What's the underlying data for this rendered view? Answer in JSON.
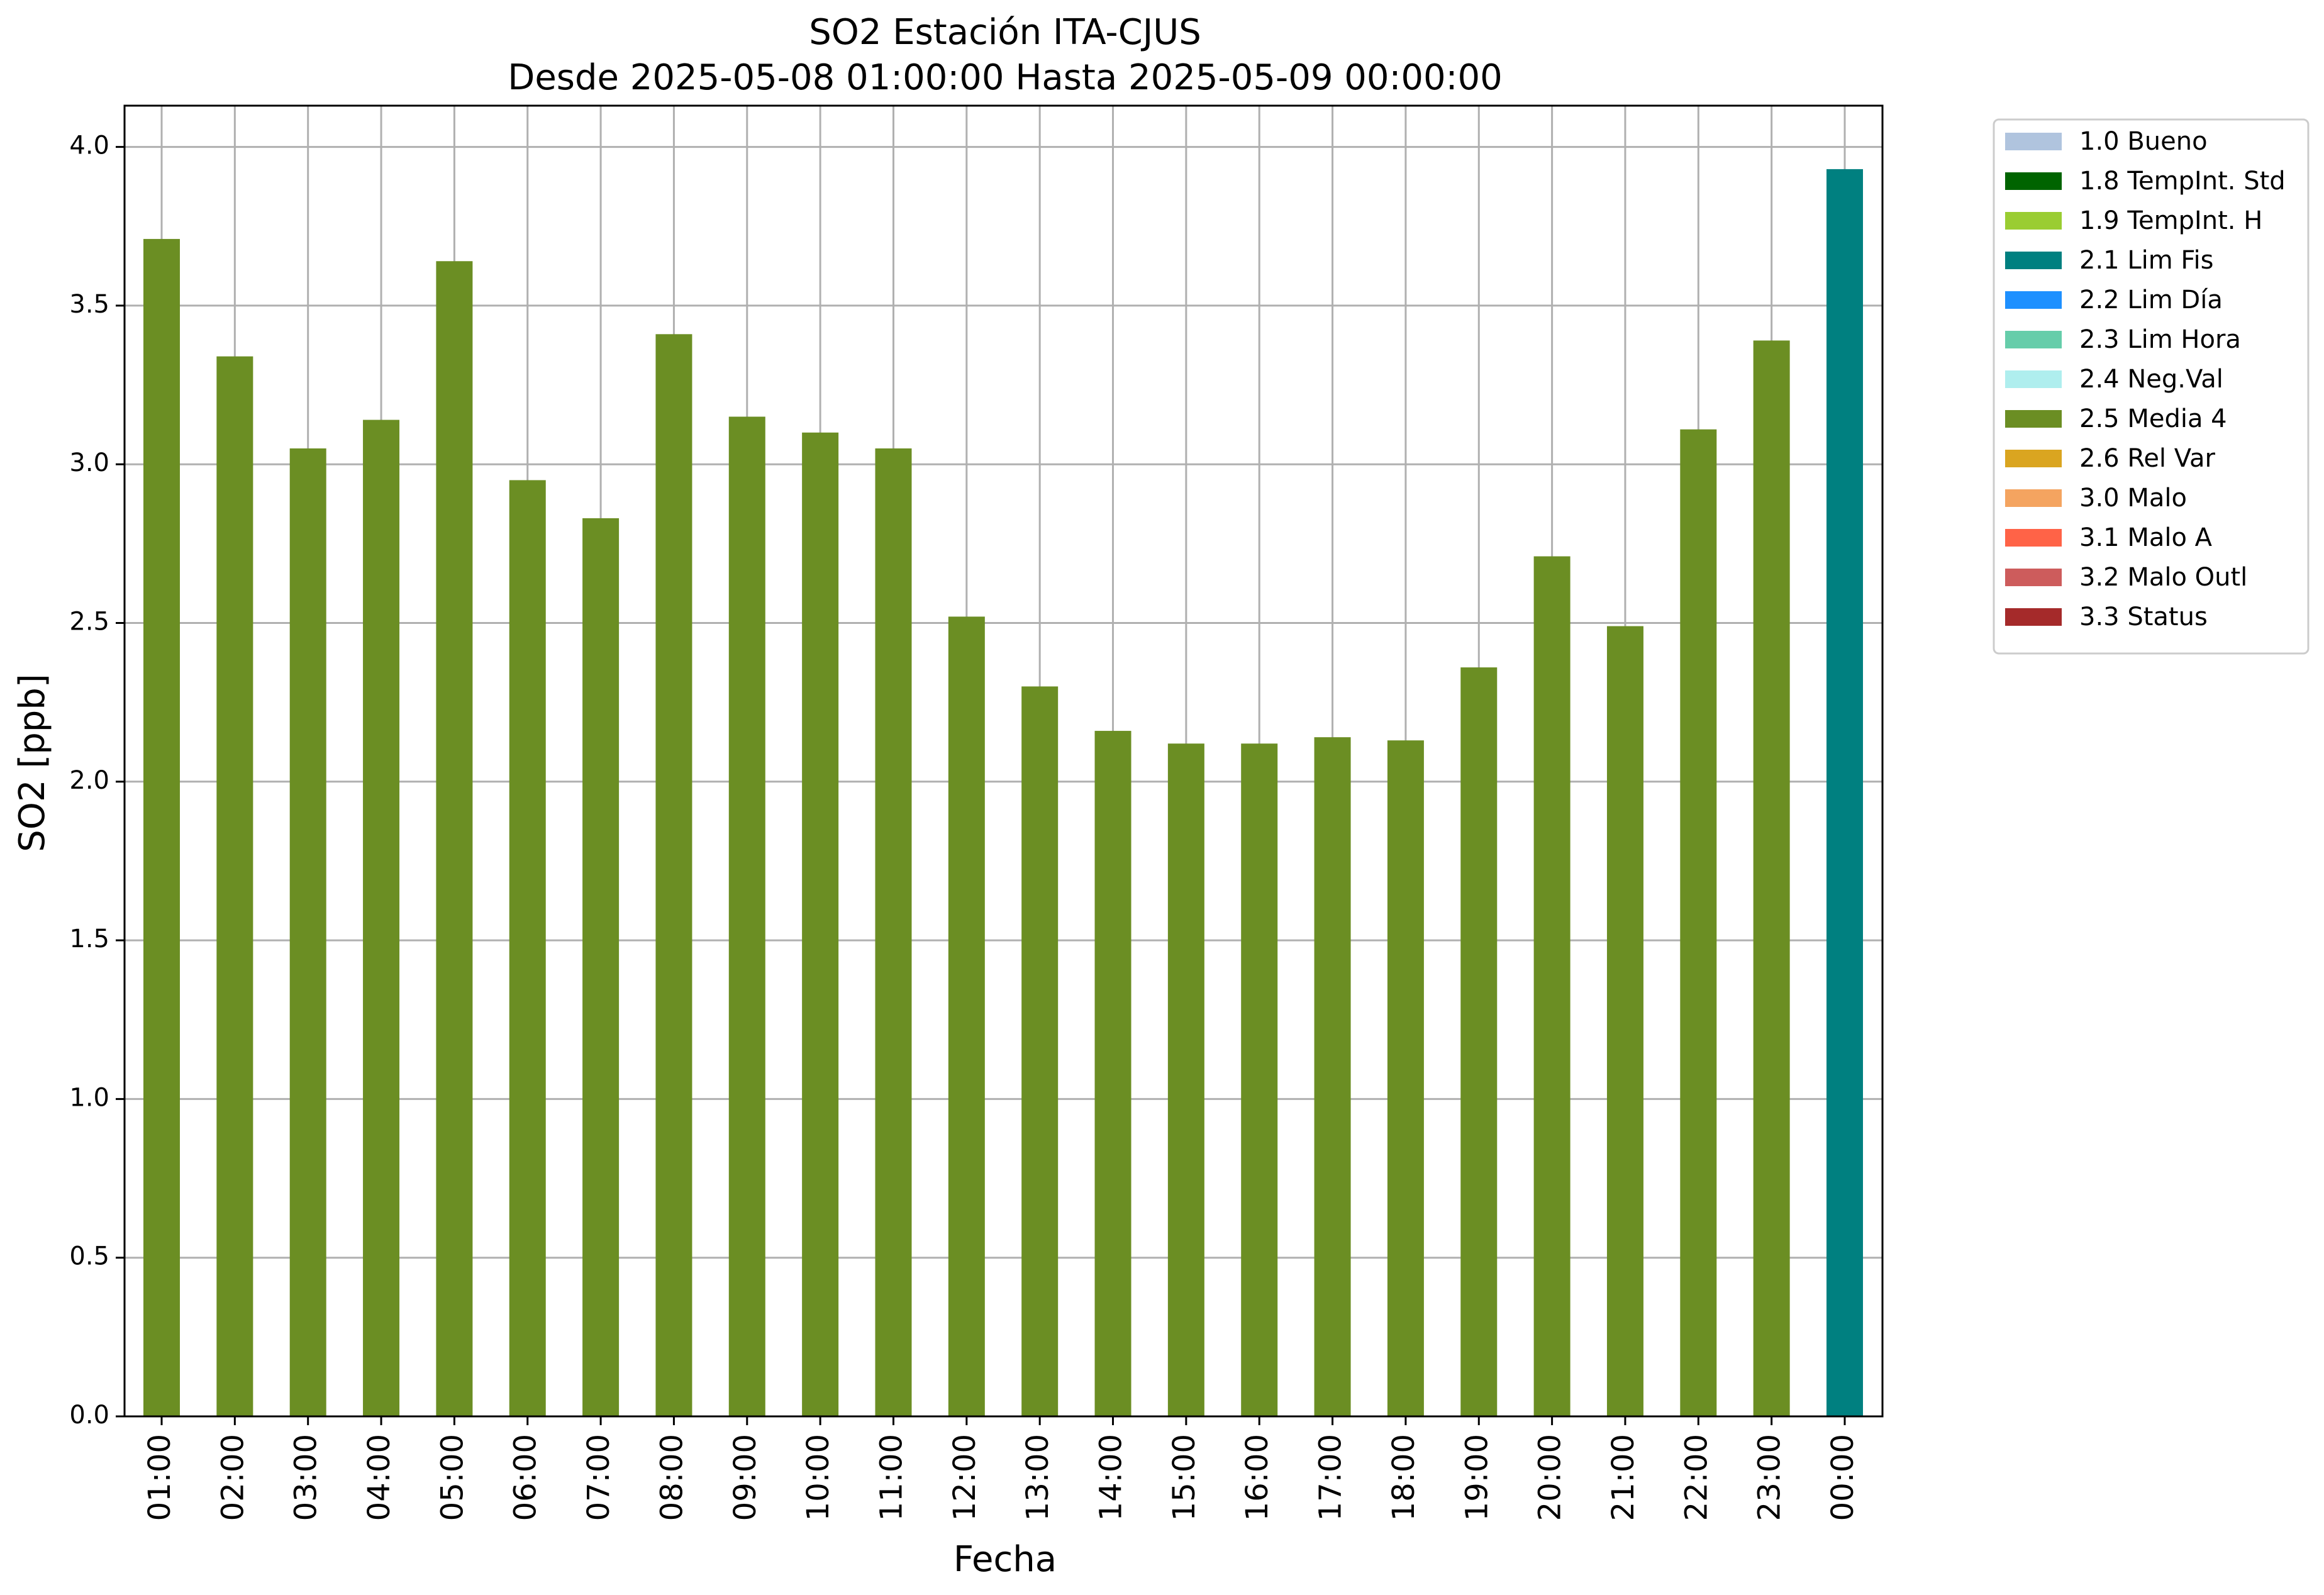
{
  "chart_data": {
    "type": "bar",
    "title": "SO2 Estación ITA-CJUS",
    "subtitle": "Desde 2025-05-08 01:00:00 Hasta 2025-05-09 00:00:00",
    "xlabel": "Fecha",
    "ylabel": "SO2 [ppb]",
    "ylim": [
      0,
      4.13
    ],
    "yticks": [
      "0.0",
      "0.5",
      "1.0",
      "1.5",
      "2.0",
      "2.5",
      "3.0",
      "3.5",
      "4.0"
    ],
    "grid": true,
    "legend_position": "outside-top-right",
    "categories": [
      "01:00",
      "02:00",
      "03:00",
      "04:00",
      "05:00",
      "06:00",
      "07:00",
      "08:00",
      "09:00",
      "10:00",
      "11:00",
      "12:00",
      "13:00",
      "14:00",
      "15:00",
      "16:00",
      "17:00",
      "18:00",
      "19:00",
      "20:00",
      "21:00",
      "22:00",
      "23:00",
      "00:00"
    ],
    "values": [
      3.71,
      3.34,
      3.05,
      3.14,
      3.64,
      2.95,
      2.83,
      3.41,
      3.15,
      3.1,
      3.05,
      2.52,
      2.3,
      2.16,
      2.12,
      2.12,
      2.14,
      2.13,
      2.36,
      2.71,
      2.49,
      3.11,
      3.39,
      3.93
    ],
    "bar_flags": [
      "2.5 Media 4",
      "2.5 Media 4",
      "2.5 Media 4",
      "2.5 Media 4",
      "2.5 Media 4",
      "2.5 Media 4",
      "2.5 Media 4",
      "2.5 Media 4",
      "2.5 Media 4",
      "2.5 Media 4",
      "2.5 Media 4",
      "2.5 Media 4",
      "2.5 Media 4",
      "2.5 Media 4",
      "2.5 Media 4",
      "2.5 Media 4",
      "2.5 Media 4",
      "2.5 Media 4",
      "2.5 Media 4",
      "2.5 Media 4",
      "2.5 Media 4",
      "2.5 Media 4",
      "2.5 Media 4",
      "2.1 Lim Fis"
    ],
    "legend": [
      {
        "label": "1.0 Bueno",
        "color": "#b0c4de"
      },
      {
        "label": "1.8 TempInt. Std",
        "color": "#006400"
      },
      {
        "label": "1.9 TempInt. H",
        "color": "#9acd32"
      },
      {
        "label": "2.1 Lim Fis",
        "color": "#008080"
      },
      {
        "label": "2.2 Lim Día",
        "color": "#1e90ff"
      },
      {
        "label": "2.3 Lim Hora",
        "color": "#66cdaa"
      },
      {
        "label": "2.4 Neg.Val",
        "color": "#afeeee"
      },
      {
        "label": "2.5 Media 4",
        "color": "#6b8e23"
      },
      {
        "label": "2.6 Rel Var",
        "color": "#daa520"
      },
      {
        "label": "3.0 Malo",
        "color": "#f4a460"
      },
      {
        "label": "3.1 Malo A",
        "color": "#ff6347"
      },
      {
        "label": "3.2 Malo Outl",
        "color": "#cd5c5c"
      },
      {
        "label": "3.3 Status",
        "color": "#a52a2a"
      }
    ]
  }
}
